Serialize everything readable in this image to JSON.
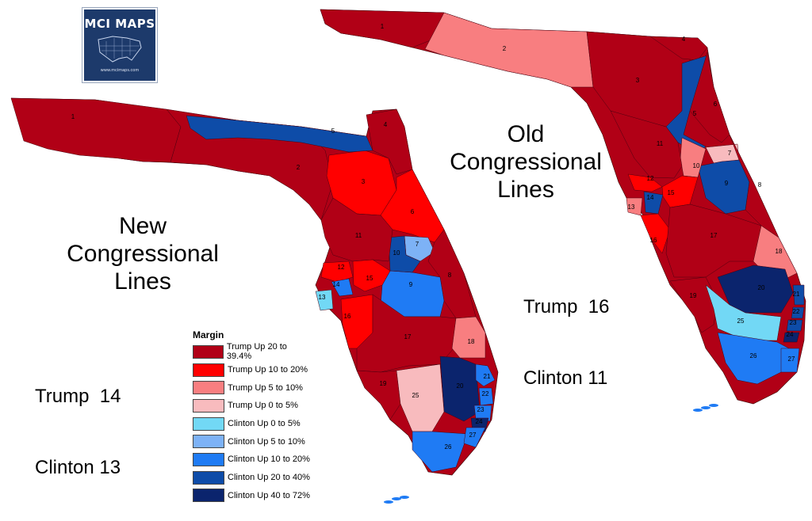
{
  "logo": {
    "text": "MCI MAPS",
    "url": "www.mcimaps.com"
  },
  "titles": {
    "new": [
      "New",
      "Congressional",
      "Lines"
    ],
    "old": [
      "Old",
      "Congressional",
      "Lines"
    ]
  },
  "tallies": {
    "new": {
      "trump": "Trump  14",
      "clinton": "Clinton 13"
    },
    "old": {
      "trump": "Trump  16",
      "clinton": "Clinton 11"
    }
  },
  "legend": {
    "title": "Margin",
    "items": [
      {
        "label": "Trump Up 20 to 39.4%",
        "color": "#b10016"
      },
      {
        "label": "Trump Up 10 to 20%",
        "color": "#ff0000"
      },
      {
        "label": "Trump Up 5 to 10%",
        "color": "#f87e80"
      },
      {
        "label": "Trump Up 0 to 5%",
        "color": "#f8bbbe"
      },
      {
        "label": "Clinton Up 0 to 5%",
        "color": "#72d8f5"
      },
      {
        "label": "Clinton Up 5 to 10%",
        "color": "#7db2f6"
      },
      {
        "label": "Clinton Up 10 to 20%",
        "color": "#1f7bf4"
      },
      {
        "label": "Clinton Up 20 to 40%",
        "color": "#0e4ca8"
      },
      {
        "label": "Clinton Up 40 to 72%",
        "color": "#0b246d"
      }
    ]
  },
  "maps": {
    "new": {
      "districts": [
        {
          "n": "1",
          "category": 0
        },
        {
          "n": "2",
          "category": 0
        },
        {
          "n": "3",
          "category": 1
        },
        {
          "n": "4",
          "category": 0
        },
        {
          "n": "5",
          "category": 7
        },
        {
          "n": "6",
          "category": 1
        },
        {
          "n": "7",
          "category": 5
        },
        {
          "n": "8",
          "category": 0
        },
        {
          "n": "9",
          "category": 6
        },
        {
          "n": "10",
          "category": 7
        },
        {
          "n": "11",
          "category": 0
        },
        {
          "n": "12",
          "category": 1
        },
        {
          "n": "13",
          "category": 4
        },
        {
          "n": "14",
          "category": 6
        },
        {
          "n": "15",
          "category": 1
        },
        {
          "n": "16",
          "category": 1
        },
        {
          "n": "17",
          "category": 0
        },
        {
          "n": "18",
          "category": 2
        },
        {
          "n": "19",
          "category": 0
        },
        {
          "n": "20",
          "category": 8
        },
        {
          "n": "21",
          "category": 6
        },
        {
          "n": "22",
          "category": 6
        },
        {
          "n": "23",
          "category": 6
        },
        {
          "n": "24",
          "category": 8
        },
        {
          "n": "25",
          "category": 3
        },
        {
          "n": "26",
          "category": 6
        },
        {
          "n": "27",
          "category": 6
        }
      ]
    },
    "old": {
      "districts": [
        {
          "n": "1",
          "category": 0
        },
        {
          "n": "2",
          "category": 2
        },
        {
          "n": "3",
          "category": 0
        },
        {
          "n": "4",
          "category": 0
        },
        {
          "n": "5",
          "category": 7
        },
        {
          "n": "6",
          "category": 0
        },
        {
          "n": "7",
          "category": 3
        },
        {
          "n": "8",
          "category": 0
        },
        {
          "n": "9",
          "category": 7
        },
        {
          "n": "10",
          "category": 2
        },
        {
          "n": "11",
          "category": 0
        },
        {
          "n": "12",
          "category": 1
        },
        {
          "n": "13",
          "category": 2
        },
        {
          "n": "14",
          "category": 7
        },
        {
          "n": "15",
          "category": 1
        },
        {
          "n": "16",
          "category": 1
        },
        {
          "n": "17",
          "category": 0
        },
        {
          "n": "18",
          "category": 2
        },
        {
          "n": "19",
          "category": 0
        },
        {
          "n": "20",
          "category": 8
        },
        {
          "n": "21",
          "category": 7
        },
        {
          "n": "22",
          "category": 7
        },
        {
          "n": "23",
          "category": 7
        },
        {
          "n": "24",
          "category": 8
        },
        {
          "n": "25",
          "category": 4
        },
        {
          "n": "26",
          "category": 6
        },
        {
          "n": "27",
          "category": 6
        }
      ]
    }
  }
}
